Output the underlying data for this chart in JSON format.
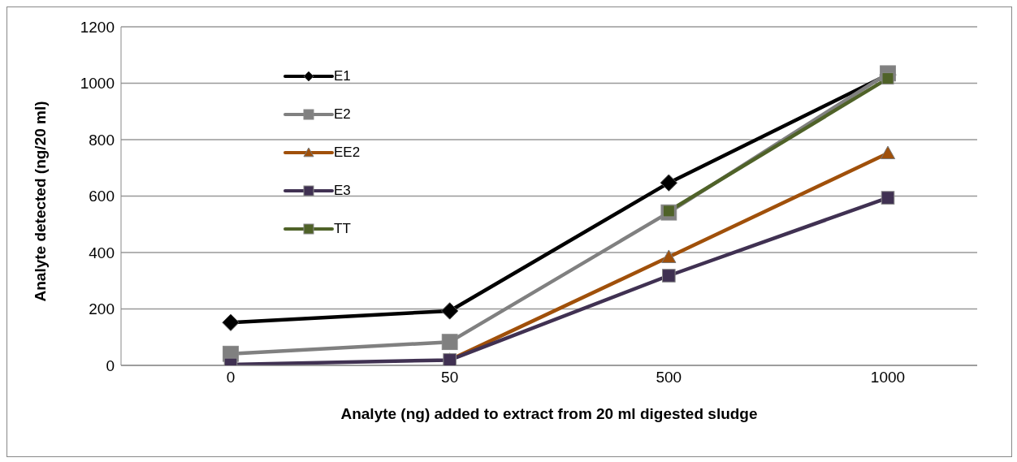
{
  "chart_data": {
    "type": "line",
    "xlabel": "Analyte (ng) added to extract from 20 ml digested sludge",
    "ylabel": "Analyte detected (ng/20 ml)",
    "categories": [
      "0",
      "50",
      "500",
      "1000"
    ],
    "series": [
      {
        "name": "E1",
        "color": "#000000",
        "marker": "diamond",
        "values": [
          152,
          193,
          647,
          1030
        ]
      },
      {
        "name": "E2",
        "color": "#808080",
        "marker": "square",
        "values": [
          41,
          83,
          542,
          1035
        ]
      },
      {
        "name": "EE2",
        "color": "#a0500a",
        "marker": "triangle",
        "values": [
          null,
          19,
          384,
          752
        ]
      },
      {
        "name": "E3",
        "color": "#403152",
        "marker": "square",
        "values": [
          3,
          19,
          318,
          594
        ]
      },
      {
        "name": "TT",
        "color": "#4f6228",
        "marker": "square",
        "values": [
          null,
          null,
          547,
          1017
        ]
      }
    ],
    "ylim": [
      0,
      1200
    ],
    "yticks": [
      0,
      200,
      400,
      600,
      800,
      1000,
      1200
    ],
    "grid": "y",
    "legend": "top left",
    "line_style": "solid"
  }
}
